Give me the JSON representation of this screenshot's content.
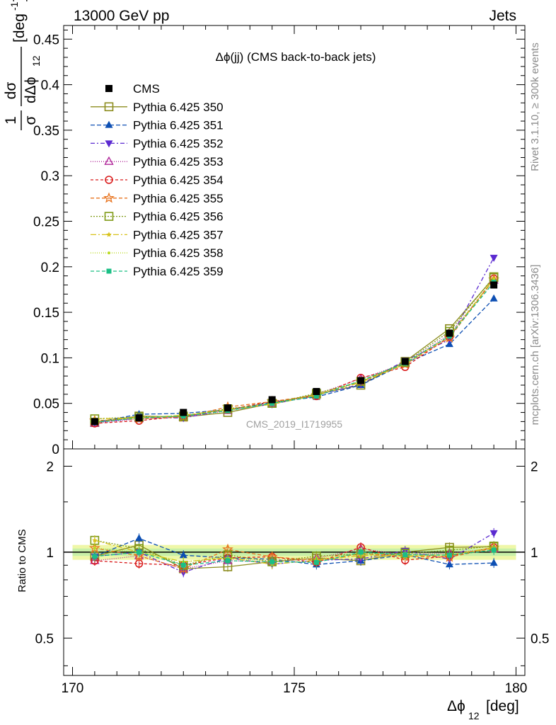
{
  "header": {
    "left": "13000 GeV pp",
    "right": "Jets"
  },
  "side_labels": {
    "rivet": "Rivet 3.1.10, ≥ 300k events",
    "mcplots": "mcplots.cern.ch [arXiv:1306.3436]"
  },
  "watermark": "CMS_2019_I1719955",
  "chart_data": {
    "type": "line",
    "title": "Δϕ(jj) (CMS back-to-back jets)",
    "xlabel": "Δϕ",
    "xlabel_sub": "12",
    "xlabel_unit": "[deg]",
    "ylabel": "1/σ dσ/dΔϕ_12 [deg^-1]",
    "ratio_ylabel": "Ratio to CMS",
    "xlim": [
      169.8,
      180.2
    ],
    "ylim": [
      0,
      0.465
    ],
    "ratio_ylim": [
      0.37,
      2.3
    ],
    "ratio_scale": "log",
    "x_ticks": [
      170,
      175,
      180
    ],
    "y_ticks": [
      0,
      0.05,
      0.1,
      0.15,
      0.2,
      0.25,
      0.3,
      0.35,
      0.4,
      0.45
    ],
    "y_tick_labels": [
      "0",
      "0.05",
      "0.1",
      "0.15",
      "0.2",
      "0.25",
      "0.3",
      "0.35",
      "0.4",
      "0.45"
    ],
    "ratio_ticks": [
      0.5,
      1,
      2
    ],
    "ratio_tick_labels": [
      "0.5",
      "1",
      "2"
    ],
    "x": [
      170.5,
      171.5,
      172.5,
      173.5,
      174.5,
      175.5,
      176.5,
      177.5,
      178.5,
      179.5
    ],
    "data": {
      "name": "CMS",
      "values": [
        0.03,
        0.034,
        0.04,
        0.045,
        0.054,
        0.063,
        0.075,
        0.096,
        0.127,
        0.18
      ],
      "uncertainty_band": [
        0.94,
        1.06
      ]
    },
    "series": [
      {
        "name": "Pythia 6.425 350",
        "color": "#8c8c1e",
        "marker": "open-square",
        "dash": "",
        "values": [
          0.029,
          0.036,
          0.035,
          0.04,
          0.05,
          0.06,
          0.07,
          0.096,
          0.132,
          0.188
        ]
      },
      {
        "name": "Pythia 6.425 351",
        "color": "#0d4fb3",
        "marker": "triangle-up",
        "dash": "6,3",
        "values": [
          0.029,
          0.038,
          0.039,
          0.043,
          0.051,
          0.057,
          0.07,
          0.094,
          0.115,
          0.165
        ]
      },
      {
        "name": "Pythia 6.425 352",
        "color": "#5b2ad0",
        "marker": "triangle-down",
        "dash": "6,3,2,3",
        "values": [
          0.029,
          0.034,
          0.034,
          0.043,
          0.049,
          0.059,
          0.071,
          0.097,
          0.12,
          0.21
        ]
      },
      {
        "name": "Pythia 6.425 353",
        "color": "#b0279a",
        "marker": "open-triangle",
        "dash": "1,2",
        "values": [
          0.028,
          0.033,
          0.035,
          0.042,
          0.05,
          0.06,
          0.077,
          0.094,
          0.126,
          0.185
        ]
      },
      {
        "name": "Pythia 6.425 354",
        "color": "#d91a1a",
        "marker": "open-circle",
        "dash": "4,3",
        "values": [
          0.028,
          0.031,
          0.036,
          0.043,
          0.052,
          0.058,
          0.078,
          0.09,
          0.123,
          0.187
        ]
      },
      {
        "name": "Pythia 6.425 355",
        "color": "#e8731e",
        "marker": "open-star",
        "dash": "5,3",
        "values": [
          0.031,
          0.033,
          0.035,
          0.046,
          0.052,
          0.059,
          0.074,
          0.093,
          0.122,
          0.186
        ]
      },
      {
        "name": "Pythia 6.425 356",
        "color": "#7f9a16",
        "marker": "open-square",
        "dash": "2,2",
        "values": [
          0.033,
          0.035,
          0.036,
          0.044,
          0.05,
          0.061,
          0.074,
          0.095,
          0.129,
          0.189
        ]
      },
      {
        "name": "Pythia 6.425 357",
        "color": "#d8c21a",
        "marker": "small-star",
        "dash": "8,3,2,3",
        "values": [
          0.033,
          0.034,
          0.037,
          0.043,
          0.049,
          0.059,
          0.073,
          0.093,
          0.124,
          0.187
        ]
      },
      {
        "name": "Pythia 6.425 358",
        "color": "#bada20",
        "marker": "small-dot",
        "dash": "1,2",
        "values": [
          0.031,
          0.034,
          0.037,
          0.043,
          0.05,
          0.06,
          0.074,
          0.094,
          0.124,
          0.186
        ]
      },
      {
        "name": "Pythia 6.425 359",
        "color": "#1bbf85",
        "marker": "filled-square",
        "dash": "5,3",
        "values": [
          0.029,
          0.034,
          0.036,
          0.042,
          0.05,
          0.058,
          0.075,
          0.094,
          0.124,
          0.183
        ]
      }
    ]
  }
}
